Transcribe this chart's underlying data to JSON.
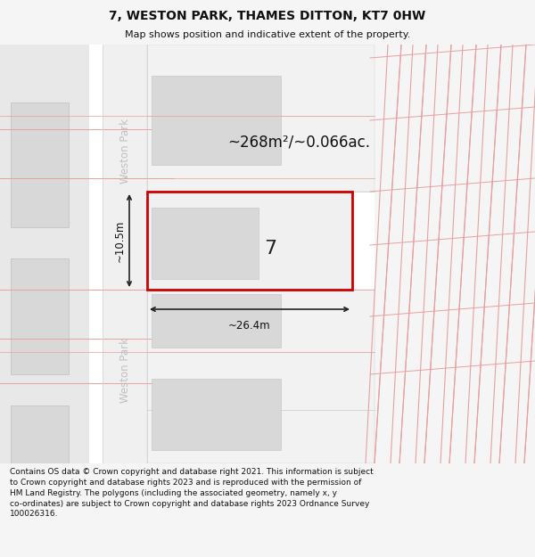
{
  "title": "7, WESTON PARK, THAMES DITTON, KT7 0HW",
  "subtitle": "Map shows position and indicative extent of the property.",
  "footer": "Contains OS data © Crown copyright and database right 2021. This information is subject\nto Crown copyright and database rights 2023 and is reproduced with the permission of\nHM Land Registry. The polygons (including the associated geometry, namely x, y\nco-ordinates) are subject to Crown copyright and database rights 2023 Ordnance Survey\n100026316.",
  "area_label": "~268m²/~0.066ac.",
  "width_label": "~26.4m",
  "height_label": "~10.5m",
  "property_number": "7",
  "bg_color": "#f5f5f5",
  "map_bg": "#ffffff",
  "red_line": "#e8a0a0",
  "red_outline": "#cc0000",
  "gray_block": "#e8e8e8",
  "gray_bld": "#d8d8d8",
  "gray_road": "#e2e2e2",
  "dim_color": "#222222",
  "road_label_color": "#c0c0c0",
  "road_label": "Weston Park",
  "title_fs": 10,
  "subtitle_fs": 8,
  "footer_fs": 6.5
}
